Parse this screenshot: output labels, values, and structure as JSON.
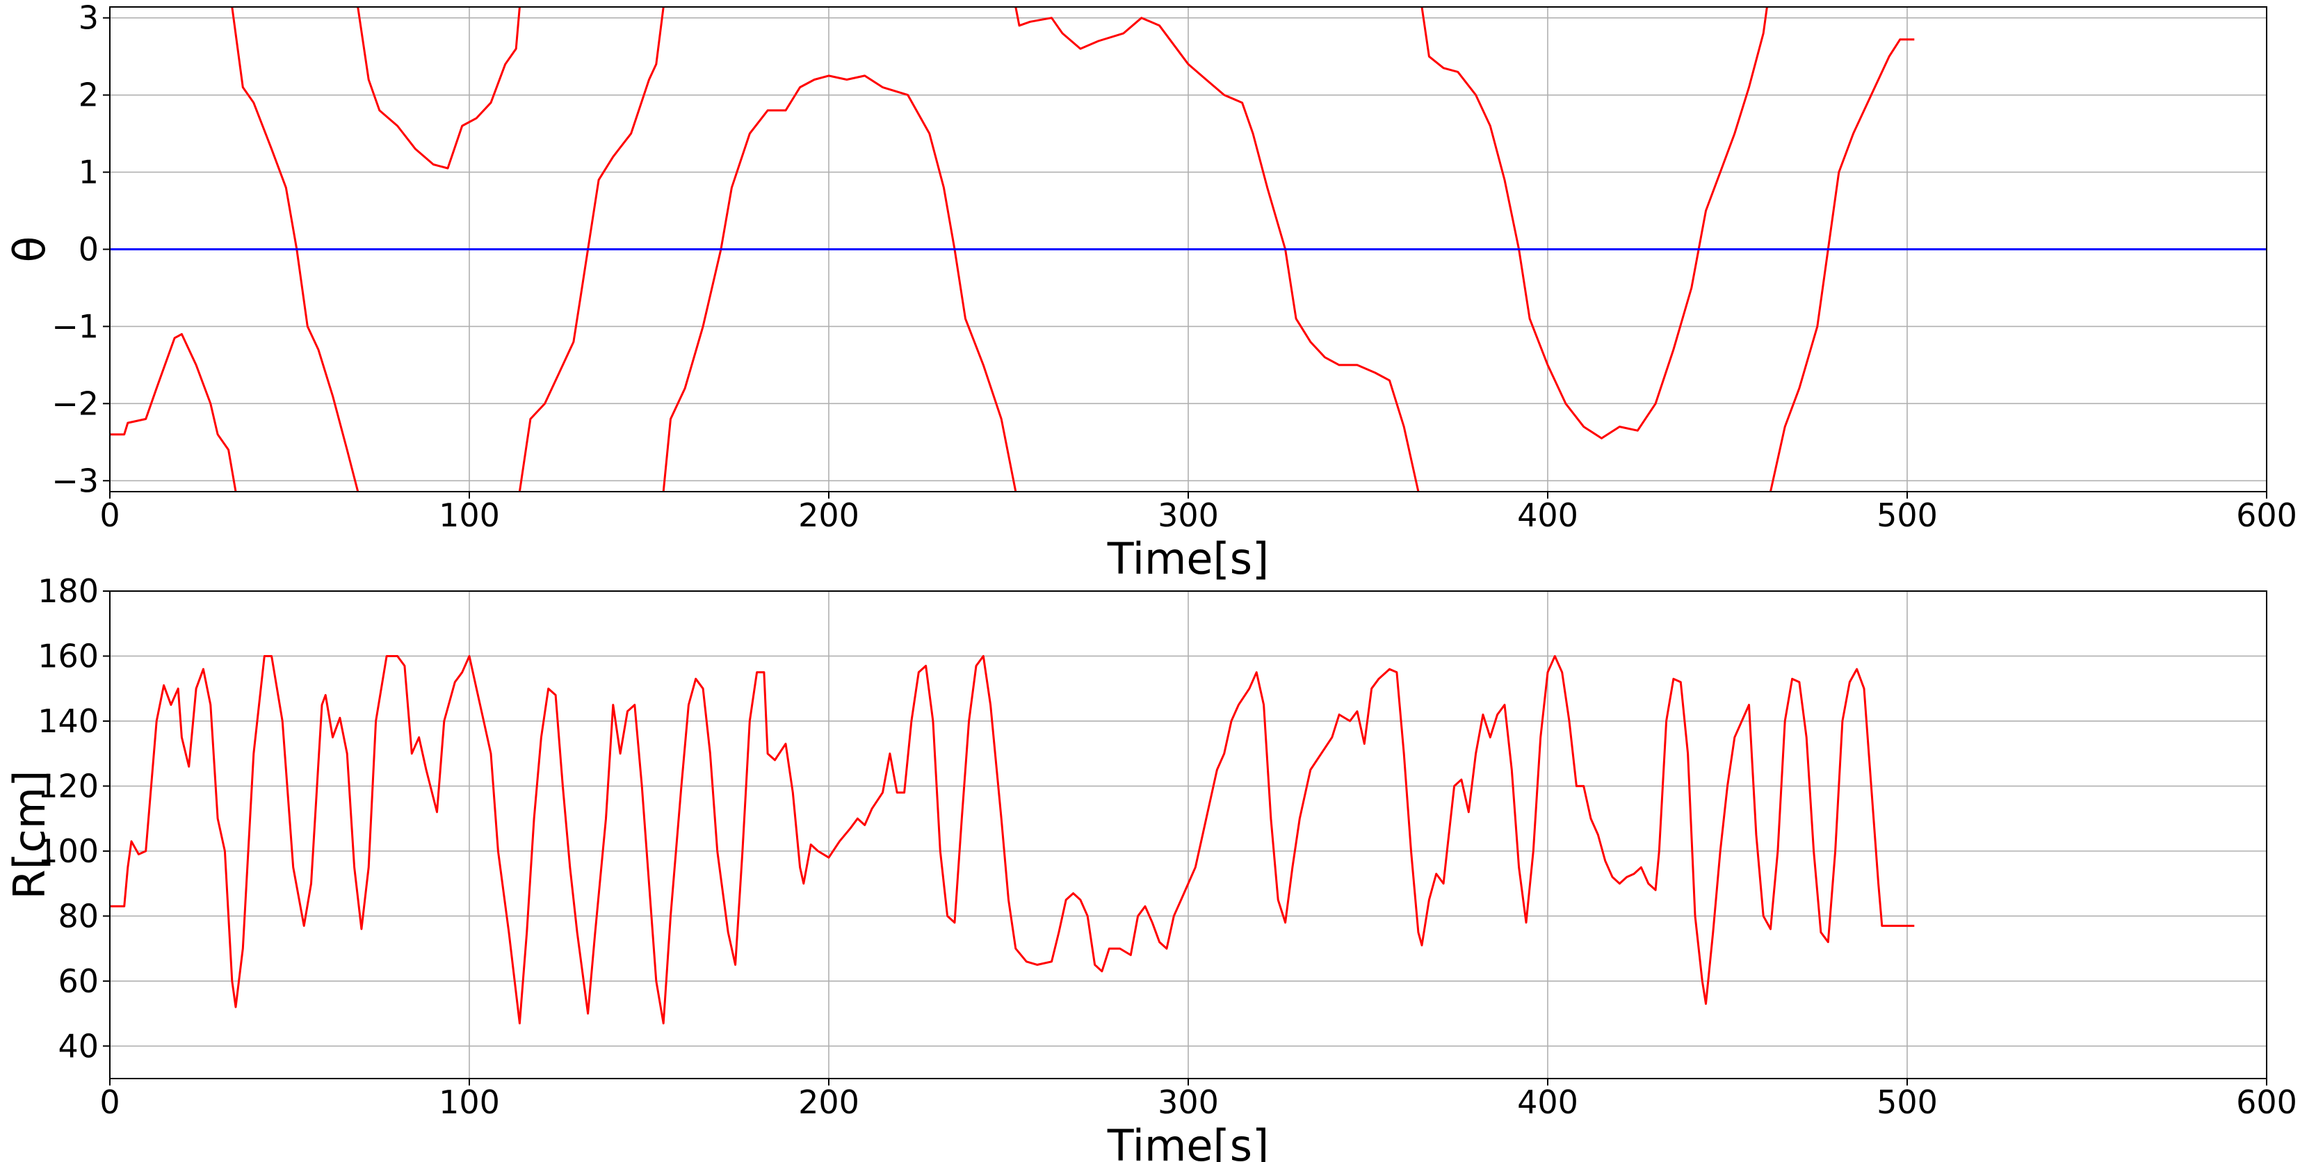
{
  "chart_data": [
    {
      "type": "line",
      "xlabel": "Time[s]",
      "ylabel": "θ",
      "grid": true,
      "xlim": [
        0,
        600
      ],
      "xticks": [
        0,
        100,
        200,
        300,
        400,
        500,
        600
      ],
      "ylim": [
        -3.14159,
        3.14159
      ],
      "yticks": [
        {
          "value": -3,
          "label": "−3"
        },
        {
          "value": -2,
          "label": "−2"
        },
        {
          "value": -1,
          "label": "−1"
        },
        0,
        1,
        2,
        3
      ],
      "series": [
        {
          "color": "#ff0000",
          "x": [
            0,
            4,
            5,
            10,
            13,
            18,
            20,
            24,
            28,
            30,
            33,
            35,
            35,
            34,
            37,
            40,
            45,
            49,
            52,
            55,
            58,
            62,
            66,
            69,
            69,
            69,
            72,
            75,
            80,
            85,
            90,
            94,
            98,
            102,
            106,
            110,
            113,
            114,
            114,
            114,
            117,
            121,
            125,
            129,
            131,
            133,
            136,
            140,
            145,
            150,
            152,
            154,
            154,
            154,
            156,
            160,
            165,
            170,
            173,
            178,
            183,
            188,
            192,
            196,
            200,
            205,
            210,
            215,
            222,
            228,
            232,
            235,
            238,
            243,
            248,
            252,
            252,
            252,
            253,
            256,
            262,
            265,
            270,
            275,
            282,
            287,
            292,
            300,
            305,
            310,
            315,
            318,
            322,
            327,
            330,
            334,
            338,
            342,
            347,
            352,
            356,
            360,
            364,
            364,
            365,
            367,
            371,
            375,
            380,
            384,
            388,
            392,
            395,
            400,
            405,
            410,
            415,
            420,
            425,
            430,
            435,
            440,
            444,
            448,
            452,
            456,
            460,
            461,
            461,
            462,
            466,
            470,
            475,
            478,
            481,
            485,
            490,
            495,
            498,
            502
          ],
          "values": [
            -2.4,
            -2.4,
            -2.25,
            -2.2,
            -1.8,
            -1.15,
            -1.1,
            -1.5,
            -2.0,
            -2.4,
            -2.6,
            -3.14,
            null,
            3.14,
            2.1,
            1.9,
            1.3,
            0.8,
            0,
            -1.0,
            -1.3,
            -1.9,
            -2.6,
            -3.14,
            null,
            3.14,
            2.2,
            1.8,
            1.6,
            1.3,
            1.1,
            1.05,
            1.6,
            1.7,
            1.9,
            2.4,
            2.6,
            3.14,
            null,
            -3.14,
            -2.2,
            -2.0,
            -1.6,
            -1.2,
            -0.6,
            0,
            0.9,
            1.2,
            1.5,
            2.2,
            2.4,
            3.14,
            null,
            -3.14,
            -2.2,
            -1.8,
            -1.0,
            0,
            0.8,
            1.5,
            1.8,
            1.8,
            2.1,
            2.2,
            2.25,
            2.2,
            2.25,
            2.1,
            2.0,
            1.5,
            0.8,
            0,
            -0.9,
            -1.5,
            -2.2,
            -3.14,
            null,
            3.14,
            2.9,
            2.95,
            3.0,
            2.8,
            2.6,
            2.7,
            2.8,
            3.0,
            2.9,
            2.4,
            2.2,
            2.0,
            1.9,
            1.5,
            0.8,
            0,
            -0.9,
            -1.2,
            -1.4,
            -1.5,
            -1.5,
            -1.6,
            -1.7,
            -2.3,
            -3.14,
            null,
            3.14,
            2.5,
            2.35,
            2.3,
            2.0,
            1.6,
            0.9,
            0,
            -0.9,
            -1.5,
            -2.0,
            -2.3,
            -2.45,
            -2.3,
            -2.35,
            -2.0,
            -1.3,
            -0.5,
            0.5,
            1.0,
            1.5,
            2.1,
            2.8,
            3.14,
            null,
            -3.14,
            -2.3,
            -1.8,
            -1.0,
            0,
            1.0,
            1.5,
            2.0,
            2.5,
            2.72,
            2.72
          ]
        },
        {
          "color": "#0000ff",
          "x": [
            0,
            600
          ],
          "values": [
            0,
            0
          ]
        }
      ]
    },
    {
      "type": "line",
      "xlabel": "Time[s]",
      "ylabel": "R[cm]",
      "grid": true,
      "xlim": [
        0,
        600
      ],
      "xticks": [
        0,
        100,
        200,
        300,
        400,
        500,
        600
      ],
      "ylim": [
        30,
        180
      ],
      "yticks": [
        40,
        60,
        80,
        100,
        120,
        140,
        160,
        180
      ],
      "series": [
        {
          "color": "#ff0000",
          "x": [
            0,
            4,
            5,
            6,
            8,
            10,
            13,
            15,
            17,
            19,
            20,
            22,
            24,
            26,
            28,
            30,
            32,
            34,
            35,
            37,
            40,
            43,
            45,
            48,
            51,
            54,
            56,
            59,
            60,
            62,
            64,
            66,
            68,
            70,
            72,
            74,
            77,
            80,
            82,
            84,
            86,
            88,
            91,
            93,
            96,
            98,
            100,
            102,
            104,
            106,
            108,
            111,
            114,
            116,
            118,
            120,
            122,
            124,
            126,
            128,
            130,
            133,
            135,
            138,
            140,
            142,
            144,
            146,
            148,
            150,
            152,
            154,
            156,
            159,
            161,
            163,
            165,
            167,
            169,
            172,
            174,
            176,
            178,
            180,
            182,
            183,
            185,
            188,
            190,
            192,
            193,
            195,
            197,
            200,
            203,
            206,
            208,
            210,
            212,
            215,
            217,
            219,
            221,
            223,
            225,
            227,
            229,
            231,
            233,
            235,
            237,
            239,
            241,
            243,
            245,
            248,
            250,
            252,
            255,
            258,
            262,
            264,
            266,
            268,
            270,
            272,
            274,
            276,
            278,
            281,
            284,
            286,
            288,
            290,
            292,
            294,
            296,
            298,
            300,
            302,
            304,
            306,
            308,
            310,
            312,
            314,
            317,
            319,
            321,
            323,
            325,
            327,
            329,
            331,
            334,
            337,
            340,
            342,
            345,
            347,
            349,
            351,
            353,
            356,
            358,
            360,
            362,
            364,
            365,
            367,
            369,
            371,
            372,
            374,
            376,
            378,
            380,
            382,
            384,
            386,
            388,
            390,
            392,
            394,
            396,
            398,
            400,
            402,
            404,
            406,
            408,
            410,
            412,
            414,
            416,
            418,
            420,
            422,
            424,
            426,
            428,
            430,
            431,
            433,
            435,
            437,
            439,
            441,
            443,
            444,
            446,
            448,
            450,
            452,
            454,
            456,
            458,
            460,
            462,
            464,
            466,
            468,
            470,
            472,
            474,
            476,
            478,
            480,
            482,
            484,
            486,
            488,
            490,
            492,
            493,
            502
          ],
          "values": [
            83,
            83,
            95,
            103,
            99,
            100,
            140,
            151,
            145,
            150,
            135,
            126,
            150,
            156,
            145,
            110,
            100,
            60,
            52,
            70,
            130,
            160,
            160,
            140,
            95,
            77,
            90,
            145,
            148,
            135,
            141,
            130,
            95,
            76,
            95,
            140,
            160,
            160,
            157,
            130,
            135,
            125,
            112,
            140,
            152,
            155,
            160,
            150,
            140,
            130,
            100,
            75,
            47,
            75,
            110,
            135,
            150,
            148,
            120,
            95,
            75,
            50,
            75,
            110,
            145,
            130,
            143,
            145,
            120,
            90,
            60,
            47,
            80,
            120,
            145,
            153,
            150,
            130,
            100,
            75,
            65,
            100,
            140,
            155,
            155,
            130,
            128,
            133,
            118,
            95,
            90,
            102,
            100,
            98,
            103,
            107,
            110,
            108,
            113,
            118,
            130,
            118,
            118,
            140,
            155,
            157,
            140,
            100,
            80,
            78,
            110,
            140,
            157,
            160,
            145,
            110,
            85,
            70,
            66,
            65,
            66,
            75,
            85,
            87,
            85,
            80,
            65,
            63,
            70,
            70,
            68,
            80,
            83,
            78,
            72,
            70,
            80,
            85,
            90,
            95,
            105,
            115,
            125,
            130,
            140,
            145,
            150,
            155,
            145,
            110,
            85,
            78,
            95,
            110,
            125,
            130,
            135,
            142,
            140,
            143,
            133,
            150,
            153,
            156,
            155,
            130,
            100,
            75,
            71,
            85,
            93,
            90,
            100,
            120,
            122,
            112,
            130,
            142,
            135,
            142,
            145,
            125,
            95,
            78,
            100,
            135,
            155,
            160,
            155,
            140,
            120,
            120,
            110,
            105,
            97,
            92,
            90,
            92,
            93,
            95,
            90,
            88,
            100,
            140,
            153,
            152,
            130,
            80,
            60,
            53,
            75,
            100,
            120,
            135,
            140,
            145,
            105,
            80,
            76,
            100,
            140,
            153,
            152,
            135,
            100,
            75,
            72,
            100,
            140,
            152,
            156,
            150,
            120,
            90,
            77,
            77
          ]
        }
      ]
    }
  ]
}
